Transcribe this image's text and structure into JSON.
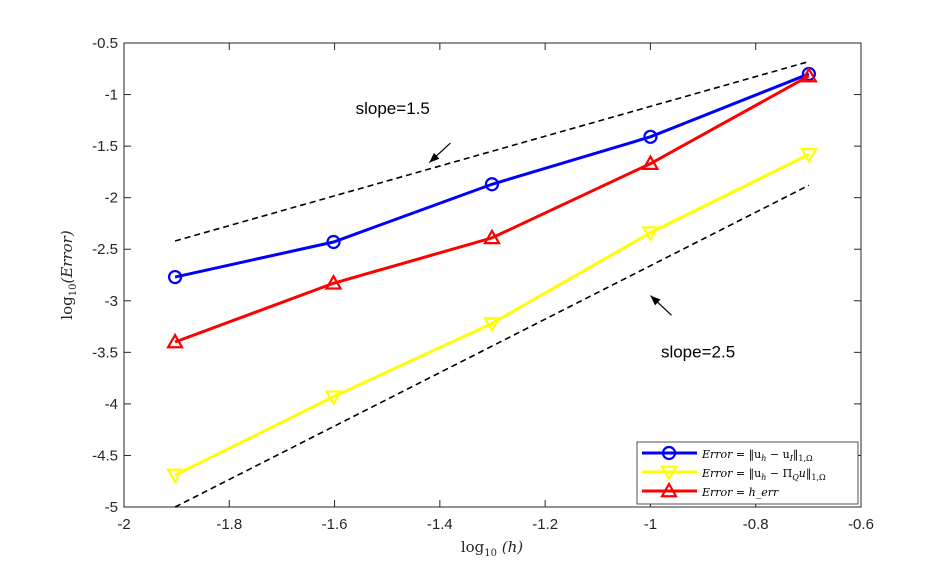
{
  "chart_data": {
    "type": "line",
    "title": "",
    "xlabel": "log10(h)",
    "ylabel": "log10(Error)",
    "xlim": [
      -2,
      -0.6
    ],
    "ylim": [
      -5,
      -0.5
    ],
    "xticks": [
      -2,
      -1.8,
      -1.6,
      -1.4,
      -1.2,
      -1,
      -0.8,
      -0.6
    ],
    "yticks": [
      -5,
      -4.5,
      -4,
      -3.5,
      -3,
      -2.5,
      -2,
      -1.5,
      -1,
      -0.5
    ],
    "xtick_labels": [
      "-2",
      "-1.8",
      "-1.6",
      "-1.4",
      "-1.2",
      "-1",
      "-0.8",
      "-0.6"
    ],
    "ytick_labels": [
      "-5",
      "-4.5",
      "-4",
      "-3.5",
      "-3",
      "-2.5",
      "-2",
      "-1.5",
      "-1",
      "-0.5"
    ],
    "grid": false,
    "legend_position": "bottom-right",
    "series": [
      {
        "name": "Error = ||u_h − u_I||_{1,Ω}",
        "color": "#0000ff",
        "marker": "circle",
        "x": [
          -1.903,
          -1.602,
          -1.301,
          -1.0,
          -0.699
        ],
        "y": [
          -2.77,
          -2.43,
          -1.87,
          -1.41,
          -0.8
        ]
      },
      {
        "name": "Error = ||u_h − Π_Q u||_{1,Ω}",
        "color": "#ffff00",
        "marker": "triangle-down",
        "x": [
          -1.903,
          -1.602,
          -1.301,
          -1.0,
          -0.699
        ],
        "y": [
          -4.69,
          -3.93,
          -3.22,
          -2.34,
          -1.58
        ]
      },
      {
        "name": "Error = h_err",
        "color": "#ff0000",
        "marker": "triangle-up",
        "x": [
          -1.903,
          -1.602,
          -1.301,
          -1.0,
          -0.699
        ],
        "y": [
          -3.4,
          -2.83,
          -2.39,
          -1.67,
          -0.82
        ]
      }
    ],
    "reference_lines": [
      {
        "color": "#000000",
        "style": "dashed",
        "x": [
          -1.903,
          -0.699
        ],
        "y": [
          -2.42,
          -0.68
        ]
      },
      {
        "color": "#000000",
        "style": "dashed",
        "x": [
          -1.903,
          -0.699
        ],
        "y": [
          -5.0,
          -1.88
        ]
      }
    ],
    "annotations": [
      {
        "text": "slope=1.5",
        "x": -1.56,
        "y": -1.19,
        "arrow_from": [
          -1.38,
          -1.47
        ],
        "arrow_to": [
          -1.42,
          -1.66
        ]
      },
      {
        "text": "slope=2.5",
        "x": -0.98,
        "y": -3.55,
        "arrow_from": [
          -0.96,
          -3.14
        ],
        "arrow_to": [
          -1.0,
          -2.95
        ]
      }
    ],
    "legend_labels": {
      "s1": {
        "pre": "Error",
        "mid": " = ‖u",
        "sub1": "h",
        "mid2": " − u",
        "sub2": "I",
        "post": "‖",
        "sub3": "1,Ω"
      },
      "s2": {
        "pre": "Error",
        "mid": " = ‖u",
        "sub1": "h",
        "mid2": " − Π",
        "sub2": "Q",
        "mid3": "u",
        "post": "‖",
        "sub3": "1,Ω"
      },
      "s3": {
        "pre": "Error",
        "mid": " = h_err"
      }
    },
    "axis_text": {
      "xlabel_pre": "log",
      "xlabel_sub": "10",
      "xlabel_post": " (h)",
      "ylabel_pre": "log",
      "ylabel_sub": "10",
      "ylabel_post": "(Error)"
    }
  }
}
